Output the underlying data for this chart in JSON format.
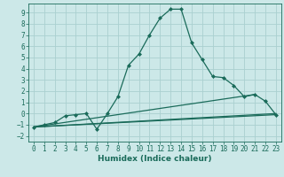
{
  "xlabel": "Humidex (Indice chaleur)",
  "ylabel": "",
  "bg_color": "#cce8e8",
  "grid_color": "#aad0d0",
  "line_color": "#1a6b5a",
  "xlim": [
    -0.5,
    23.5
  ],
  "ylim": [
    -2.5,
    9.8
  ],
  "xticks": [
    0,
    1,
    2,
    3,
    4,
    5,
    6,
    7,
    8,
    9,
    10,
    11,
    12,
    13,
    14,
    15,
    16,
    17,
    18,
    19,
    20,
    21,
    22,
    23
  ],
  "yticks": [
    -2,
    -1,
    0,
    1,
    2,
    3,
    4,
    5,
    6,
    7,
    8,
    9
  ],
  "series": [
    {
      "x": [
        0,
        1,
        2,
        3,
        4,
        5,
        6,
        7,
        8,
        9,
        10,
        11,
        12,
        13,
        14,
        15,
        16,
        17,
        18,
        19,
        20,
        21,
        22,
        23
      ],
      "y": [
        -1.2,
        -1.0,
        -0.8,
        -0.2,
        -0.1,
        0.0,
        -1.4,
        0.0,
        1.5,
        4.3,
        5.3,
        7.0,
        8.5,
        9.3,
        9.3,
        6.3,
        4.8,
        3.3,
        3.2,
        2.5,
        1.5,
        1.7,
        1.1,
        -0.1
      ],
      "has_markers": true
    },
    {
      "x": [
        0,
        23
      ],
      "y": [
        -1.2,
        -0.1
      ],
      "has_markers": false
    },
    {
      "x": [
        0,
        21
      ],
      "y": [
        -1.2,
        1.7
      ],
      "has_markers": false
    },
    {
      "x": [
        0,
        23
      ],
      "y": [
        -1.2,
        0.0
      ],
      "has_markers": false
    }
  ],
  "figsize": [
    3.2,
    2.0
  ],
  "dpi": 100,
  "xlabel_fontsize": 6.5,
  "tick_fontsize": 5.5,
  "linewidth": 0.9,
  "markersize": 2.0
}
